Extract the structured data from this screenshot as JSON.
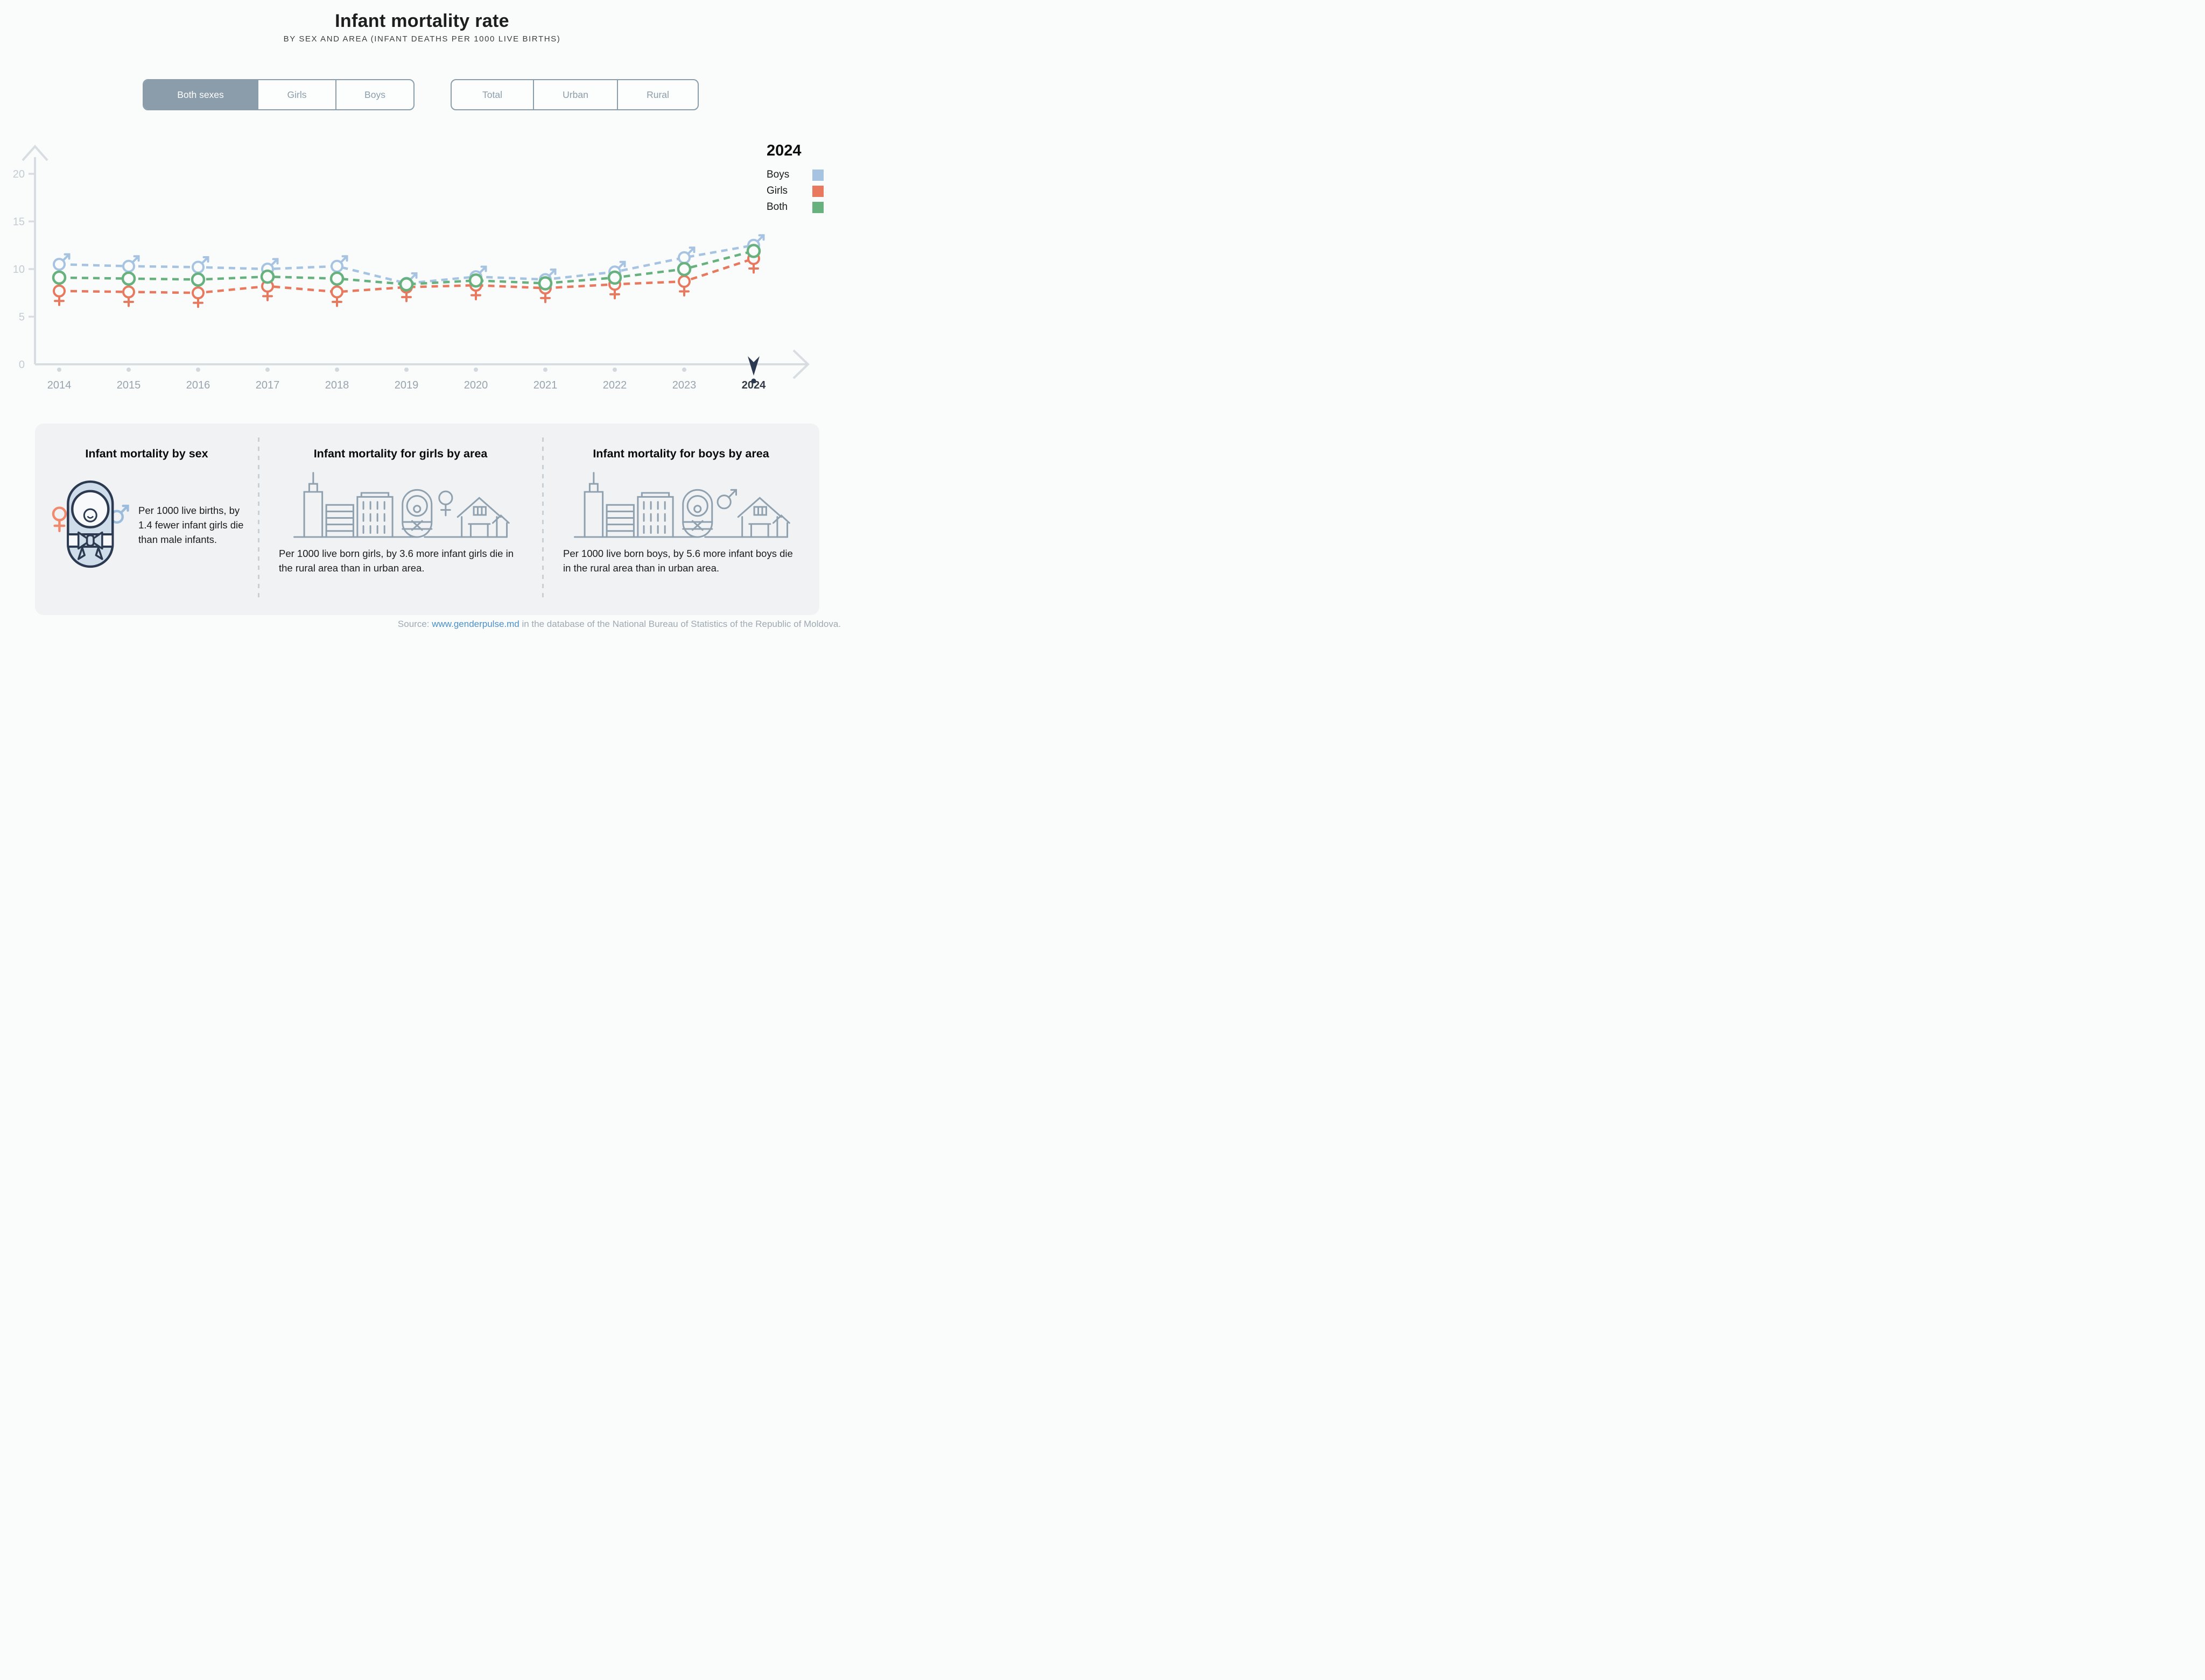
{
  "header": {
    "title": "Infant mortality rate",
    "subtitle": "BY SEX AND AREA (INFANT DEATHS PER 1000 LIVE BIRTHS)"
  },
  "toggles": {
    "sex": {
      "options": [
        "Both sexes",
        "Girls",
        "Boys"
      ],
      "selected": "Both sexes"
    },
    "area": {
      "options": [
        "Total",
        "Urban",
        "Rural"
      ],
      "selected": null
    }
  },
  "chart_data": {
    "type": "line",
    "x": [
      2014,
      2015,
      2016,
      2017,
      2018,
      2019,
      2020,
      2021,
      2022,
      2023,
      2024
    ],
    "series": [
      {
        "name": "Boys",
        "marker": "male",
        "color": "#a6c3e2",
        "values": [
          10.5,
          10.3,
          10.2,
          10.0,
          10.3,
          8.5,
          9.2,
          8.9,
          9.7,
          11.2,
          12.5
        ]
      },
      {
        "name": "Girls",
        "marker": "female",
        "color": "#e8795e",
        "values": [
          7.7,
          7.6,
          7.5,
          8.2,
          7.6,
          8.1,
          8.3,
          8.0,
          8.4,
          8.7,
          11.1
        ]
      },
      {
        "name": "Both",
        "marker": "circle",
        "color": "#66b17e",
        "values": [
          9.1,
          9.0,
          8.9,
          9.2,
          9.0,
          8.4,
          8.8,
          8.5,
          9.1,
          10.0,
          11.9
        ]
      }
    ],
    "ylabel": "",
    "xlabel": "",
    "ylim": [
      0,
      21
    ],
    "yticks": [
      0,
      5,
      10,
      15,
      20
    ],
    "grid": false,
    "selected_year": 2024,
    "legend": {
      "title": "2024",
      "position": "right",
      "entries": [
        {
          "label": "Boys",
          "color": "#a6c3e2"
        },
        {
          "label": "Girls",
          "color": "#e8795e"
        },
        {
          "label": "Both",
          "color": "#66b17e"
        }
      ]
    }
  },
  "cards": [
    {
      "title": "Infant mortality by sex",
      "text": "Per 1000 live births, by 1.4 fewer infant girls die than male infants."
    },
    {
      "title": "Infant mortality for girls by area",
      "text": "Per 1000 live born girls, by 3.6 more infant girls die in the rural area than in urban area."
    },
    {
      "title": "Infant mortality for boys by area",
      "text": "Per 1000 live born boys, by 5.6 more infant boys die in the rural area than in urban area."
    }
  ],
  "source": {
    "prefix": "Source: ",
    "link": "www.genderpulse.md",
    "suffix": " in the database of the National Bureau of Statistics of the Republic of Moldova."
  },
  "colors": {
    "boys": "#a6c3e2",
    "girls": "#e8795e",
    "both": "#66b17e",
    "navy_pointer": "#2c3a51",
    "axis": "#d8dde2",
    "tick_label": "#c3ccd3",
    "year_label": "#98a4ae",
    "selected_year_label": "#323a46",
    "button": "#8b9dab",
    "panel_bg": "#f0f2f4",
    "page_bg": "#fafbfb",
    "icon_gray": "#8fa0ae",
    "baby_fill": "#cfdcea",
    "baby_stroke": "#2c3a51",
    "female_icon": "#f08a6e",
    "male_icon": "#9cbcdc",
    "link": "#4a90c8"
  }
}
